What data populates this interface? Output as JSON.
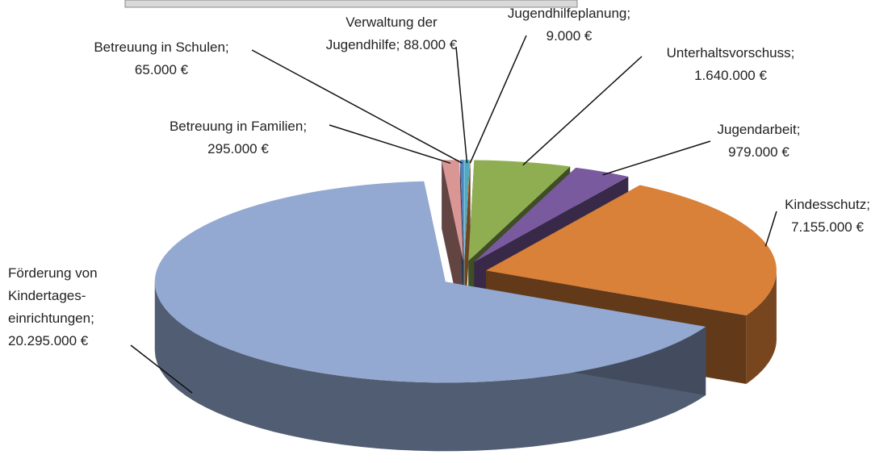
{
  "chart_data": {
    "type": "pie",
    "style": "3d-exploded",
    "categories": [
      "Verwaltung der Jugendhilfe;",
      "Jugendhilfeplanung;",
      "Unterhaltsvorschuss;",
      "Jugendarbeit;",
      "Kindesschutz;",
      "Förderung von Kindertages-einrichtungen;",
      "Betreuung in Familien;",
      "Betreuung in Schulen;"
    ],
    "values": [
      88000,
      9000,
      1640000,
      979000,
      7155000,
      20295000,
      295000,
      65000
    ],
    "value_labels": [
      "88.000 €",
      "9.000 €",
      "1.640.000 €",
      "979.000 €",
      "7.155.000 €",
      "20.295.000 €",
      "295.000 €",
      "65.000 €"
    ],
    "colors": [
      "#4bacc6",
      "#f79646",
      "#8fae52",
      "#7a5a9e",
      "#d98039",
      "#93a9d1",
      "#d99694",
      "#4f81bd"
    ]
  }
}
